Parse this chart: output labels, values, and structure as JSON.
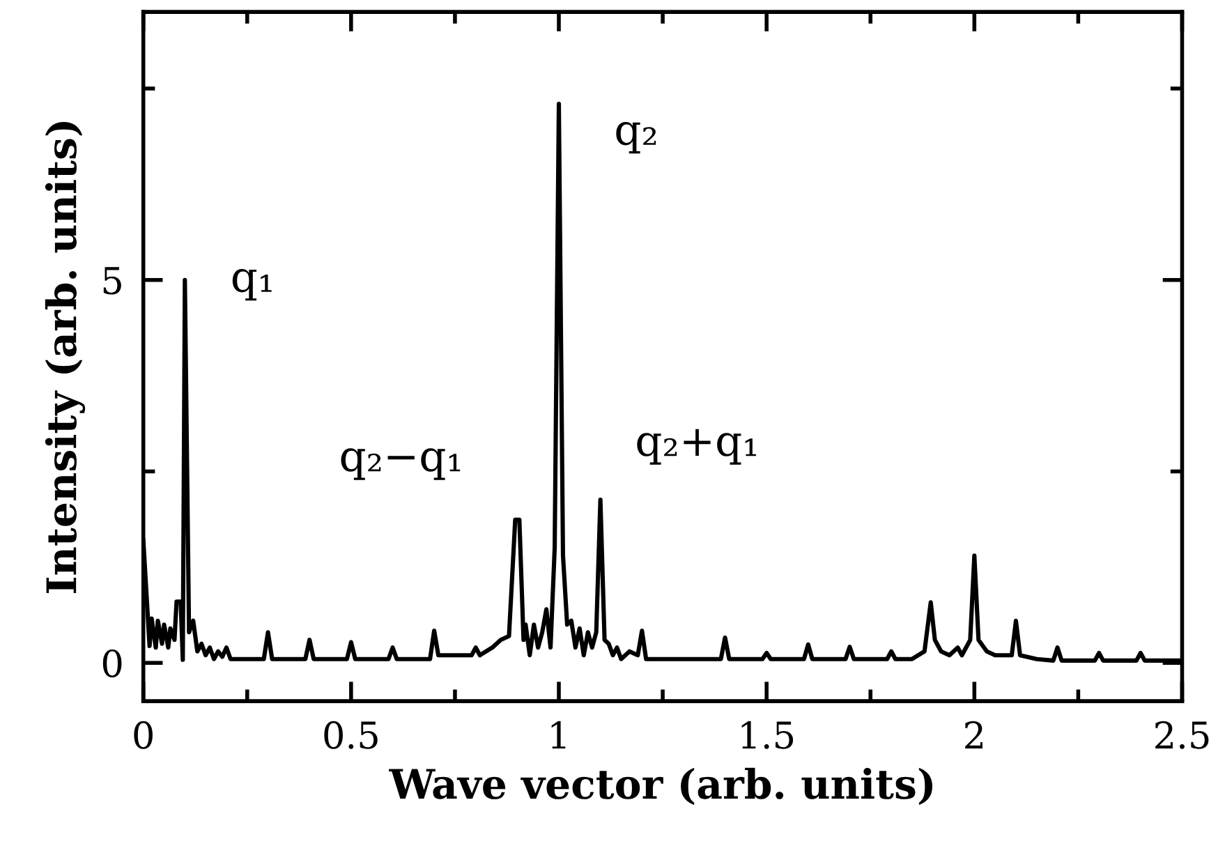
{
  "chart_data": {
    "type": "line",
    "xlabel": "Wave vector (arb. units)",
    "ylabel": "Intensity (arb. units)",
    "xlim": [
      0,
      2.5
    ],
    "ylim": [
      -0.5,
      8.5
    ],
    "xticks": [
      0,
      {
        "value": 0.25,
        "label": null
      },
      0.5,
      {
        "value": 0.75,
        "label": null
      },
      1,
      {
        "value": 1.25,
        "label": null
      },
      1.5,
      {
        "value": 1.75,
        "label": null
      },
      2,
      {
        "value": 2.25,
        "label": null
      },
      2.5
    ],
    "yticks": [
      0,
      {
        "value": 2.5,
        "label": null
      },
      5,
      {
        "value": 7.5,
        "label": null
      }
    ],
    "grid": false,
    "legend": false,
    "marker": "none",
    "line_style": "solid",
    "annotations": [
      {
        "text": "q₁",
        "x": 0.1,
        "y": 5.0
      },
      {
        "text": "q₂",
        "x": 1.0,
        "y": 7.3
      },
      {
        "text": "q₂−q₁",
        "x": 0.9,
        "y": 1.9
      },
      {
        "text": "q₂+q₁",
        "x": 1.1,
        "y": 2.1
      }
    ],
    "series": [
      {
        "color": "#000000",
        "x": [
          0,
          0.015,
          0.02,
          0.03,
          0.035,
          0.045,
          0.05,
          0.06,
          0.065,
          0.075,
          0.08,
          0.09,
          0.095,
          0.1,
          0.11,
          0.12,
          0.13,
          0.14,
          0.15,
          0.16,
          0.17,
          0.18,
          0.19,
          0.2,
          0.21,
          0.25,
          0.29,
          0.3,
          0.31,
          0.35,
          0.39,
          0.4,
          0.41,
          0.45,
          0.49,
          0.5,
          0.51,
          0.55,
          0.59,
          0.6,
          0.61,
          0.65,
          0.69,
          0.7,
          0.71,
          0.75,
          0.79,
          0.8,
          0.81,
          0.84,
          0.86,
          0.88,
          0.895,
          0.905,
          0.915,
          0.92,
          0.93,
          0.94,
          0.95,
          0.96,
          0.97,
          0.98,
          0.99,
          1.0,
          1.01,
          1.02,
          1.03,
          1.04,
          1.05,
          1.06,
          1.07,
          1.08,
          1.09,
          1.1,
          1.11,
          1.12,
          1.13,
          1.14,
          1.15,
          1.17,
          1.19,
          1.2,
          1.21,
          1.25,
          1.3,
          1.35,
          1.39,
          1.4,
          1.41,
          1.45,
          1.49,
          1.5,
          1.51,
          1.55,
          1.59,
          1.6,
          1.61,
          1.65,
          1.69,
          1.7,
          1.71,
          1.75,
          1.79,
          1.8,
          1.81,
          1.85,
          1.88,
          1.895,
          1.905,
          1.92,
          1.94,
          1.96,
          1.97,
          1.98,
          1.99,
          2.0,
          2.01,
          2.03,
          2.05,
          2.09,
          2.1,
          2.11,
          2.15,
          2.19,
          2.2,
          2.21,
          2.25,
          2.29,
          2.3,
          2.31,
          2.35,
          2.39,
          2.4,
          2.41,
          2.45,
          2.5
        ],
        "values": [
          1.6,
          0.22,
          0.58,
          0.2,
          0.55,
          0.25,
          0.5,
          0.2,
          0.45,
          0.3,
          0.8,
          0.8,
          0.04,
          5.0,
          0.4,
          0.55,
          0.15,
          0.25,
          0.1,
          0.2,
          0.05,
          0.15,
          0.08,
          0.2,
          0.05,
          0.05,
          0.05,
          0.4,
          0.05,
          0.05,
          0.05,
          0.3,
          0.05,
          0.05,
          0.05,
          0.27,
          0.05,
          0.05,
          0.05,
          0.2,
          0.05,
          0.05,
          0.05,
          0.42,
          0.1,
          0.1,
          0.1,
          0.2,
          0.1,
          0.2,
          0.3,
          0.35,
          1.87,
          1.87,
          0.3,
          0.5,
          0.1,
          0.5,
          0.2,
          0.4,
          0.7,
          0.2,
          1.5,
          7.3,
          1.4,
          0.5,
          0.55,
          0.2,
          0.45,
          0.1,
          0.4,
          0.2,
          0.4,
          2.13,
          0.3,
          0.25,
          0.1,
          0.2,
          0.05,
          0.15,
          0.1,
          0.42,
          0.05,
          0.05,
          0.05,
          0.05,
          0.05,
          0.33,
          0.05,
          0.05,
          0.05,
          0.13,
          0.05,
          0.05,
          0.05,
          0.24,
          0.05,
          0.05,
          0.05,
          0.21,
          0.05,
          0.05,
          0.05,
          0.15,
          0.05,
          0.05,
          0.15,
          0.79,
          0.3,
          0.15,
          0.1,
          0.2,
          0.1,
          0.2,
          0.3,
          1.4,
          0.3,
          0.15,
          0.1,
          0.1,
          0.55,
          0.1,
          0.05,
          0.03,
          0.2,
          0.03,
          0.03,
          0.03,
          0.13,
          0.03,
          0.03,
          0.03,
          0.13,
          0.03,
          0.03,
          0.03
        ]
      }
    ]
  }
}
